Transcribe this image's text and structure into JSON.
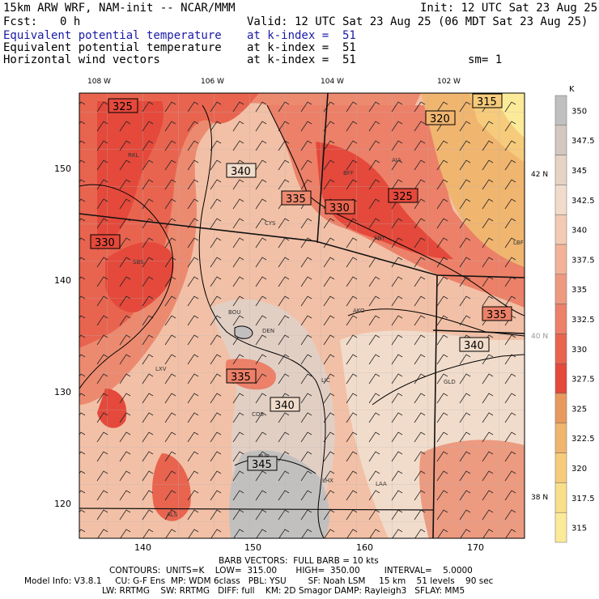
{
  "header": {
    "model": "15km ARW WRF, NAM-init -- NCAR/MMM",
    "init": "Init: 12 UTC Sat 23 Aug 25",
    "fcst_label": "Fcst:",
    "fcst_value": "0 h",
    "valid": "Valid: 12 UTC Sat 23 Aug 25 (06 MDT Sat 23 Aug 25)",
    "fields": [
      {
        "name": "Equivalent potential temperature",
        "level": "at k-index =  51",
        "color": "#1a1aa8"
      },
      {
        "name": "Equivalent potential temperature",
        "level": "at k-index =  51",
        "color": "#000000"
      },
      {
        "name": "Horizontal wind vectors",
        "level": "at k-index =  51",
        "color": "#000000"
      }
    ],
    "smoothing": "sm= 1"
  },
  "map": {
    "lon_labels": [
      "108 W",
      "106 W",
      "104 W",
      "102 W"
    ],
    "lat_labels": [
      "42 N",
      "40 N",
      "38 N"
    ],
    "x_ticks": [
      "140",
      "150",
      "160",
      "170"
    ],
    "y_ticks": [
      "150",
      "140",
      "130",
      "120"
    ],
    "cities": [
      "RKL",
      "BFF",
      "AIA",
      "CYS",
      "SNY",
      "SBS",
      "LBF",
      "BOU",
      "AKO",
      "DEN",
      "LXV",
      "LIC",
      "GLD",
      "COS",
      "PUB",
      "LHX",
      "LAA",
      "ALS"
    ],
    "contour_labels": [
      "325",
      "315",
      "320",
      "340",
      "335",
      "330",
      "325",
      "330",
      "335",
      "340",
      "335",
      "340",
      "345"
    ]
  },
  "colorbar": {
    "unit": "K",
    "labels": [
      "350",
      "347.5",
      "345",
      "342.5",
      "340",
      "337.5",
      "335",
      "332.5",
      "330",
      "327.5",
      "325",
      "322.5",
      "320",
      "317.5",
      "315"
    ],
    "colors": [
      "#c2c0bf",
      "#d4c7c0",
      "#e6d3c4",
      "#f1dccb",
      "#f3cbb4",
      "#f2b399",
      "#ee9a80",
      "#ec8068",
      "#e8644f",
      "#e4493b",
      "#e89a5e",
      "#f0b56f",
      "#f6cb7c",
      "#fadf8b",
      "#fbeb99"
    ]
  },
  "footer": {
    "barb": "BARB VECTORS:  FULL BARB = 10 kts",
    "contours": "CONTOURS:  UNITS=K    LOW=  315.00       HIGH=  350.00         INTERVAL=    5.0000",
    "model_line": "Model Info: V3.8.1     CU: G-F Ens  MP: WDM 6class   PBL: YSU        SF: Noah LSM     15 km    51 levels    90 sec",
    "phys_line": "LW: RRTMG    SW: RRTMG   DIFF: full    KM: 2D Smagor DAMP: Rayleigh3   SFLAY: MM5"
  }
}
